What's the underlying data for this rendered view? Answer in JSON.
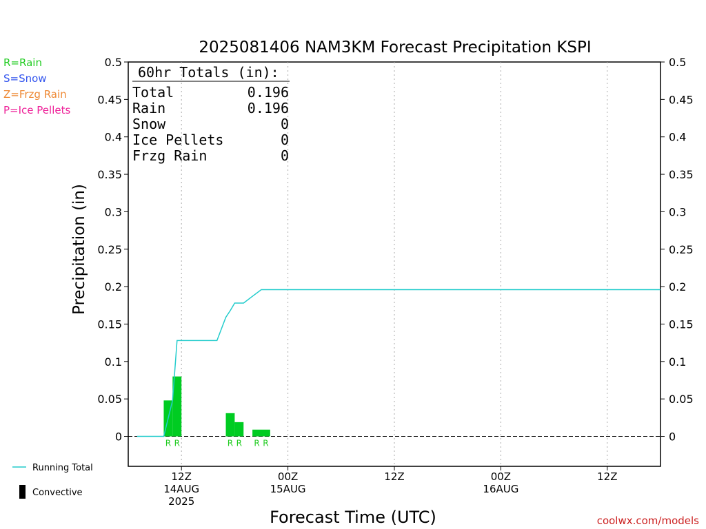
{
  "chart_data": {
    "type": "bar",
    "title": "2025081406 NAM3KM Forecast Precipitation KSPI",
    "ylabel": "Precipitation (in)",
    "xlabel": "Forecast Time (UTC)",
    "ylim": [
      -0.04,
      0.5
    ],
    "x_hours_range": [
      6,
      66
    ],
    "y_ticks": [
      "0",
      "0.05",
      "0.1",
      "0.15",
      "0.2",
      "0.25",
      "0.3",
      "0.35",
      "0.4",
      "0.45",
      "0.5"
    ],
    "x_ticks": [
      {
        "hour": 12,
        "lines": [
          "12Z",
          "14AUG",
          "2025"
        ]
      },
      {
        "hour": 24,
        "lines": [
          "00Z",
          "15AUG"
        ]
      },
      {
        "hour": 36,
        "lines": [
          "12Z"
        ]
      },
      {
        "hour": 48,
        "lines": [
          "00Z",
          "16AUG"
        ]
      },
      {
        "hour": 60,
        "lines": [
          "12Z"
        ]
      }
    ],
    "grid": "vertical-dotted",
    "legend_types": [
      {
        "label": "R=Rain",
        "color": "#22cc22"
      },
      {
        "label": "S=Snow",
        "color": "#3355ee"
      },
      {
        "label": "Z=Frzg Rain",
        "color": "#ee8833"
      },
      {
        "label": "P=Ice Pellets",
        "color": "#ee2299"
      }
    ],
    "legend_lines": [
      {
        "label": "Running Total",
        "color": "#22cccc",
        "kind": "line"
      },
      {
        "label": "Convective",
        "color": "#000000",
        "kind": "bar"
      }
    ],
    "totals": {
      "header": "60hr Totals (in):",
      "rows": [
        {
          "label": "Total",
          "value": "0.196"
        },
        {
          "label": "Rain",
          "value": "0.196"
        },
        {
          "label": "Snow",
          "value": "0"
        },
        {
          "label": "Ice Pellets",
          "value": "0"
        },
        {
          "label": "Frzg Rain",
          "value": "0"
        }
      ]
    },
    "bars": [
      {
        "hour": 10.5,
        "value": 0.048,
        "type": "R"
      },
      {
        "hour": 11.5,
        "value": 0.08,
        "type": "R"
      },
      {
        "hour": 17.5,
        "value": 0.031,
        "type": "R"
      },
      {
        "hour": 18.5,
        "value": 0.019,
        "type": "R"
      },
      {
        "hour": 20.5,
        "value": 0.009,
        "type": "R"
      },
      {
        "hour": 21.5,
        "value": 0.009,
        "type": "R"
      }
    ],
    "bar_color": "#00cc22",
    "running_total": {
      "name": "Running Total",
      "color": "#22cccc",
      "x": [
        7,
        9,
        10,
        11,
        11.5,
        12,
        13,
        14,
        15,
        16,
        17,
        17.5,
        18,
        19,
        20,
        21,
        22,
        66
      ],
      "y": [
        0,
        0,
        0,
        0.048,
        0.128,
        0.128,
        0.128,
        0.128,
        0.128,
        0.128,
        0.159,
        0.168,
        0.178,
        0.178,
        0.187,
        0.196,
        0.196,
        0.196
      ]
    }
  },
  "watermark": "coolwx.com/models"
}
